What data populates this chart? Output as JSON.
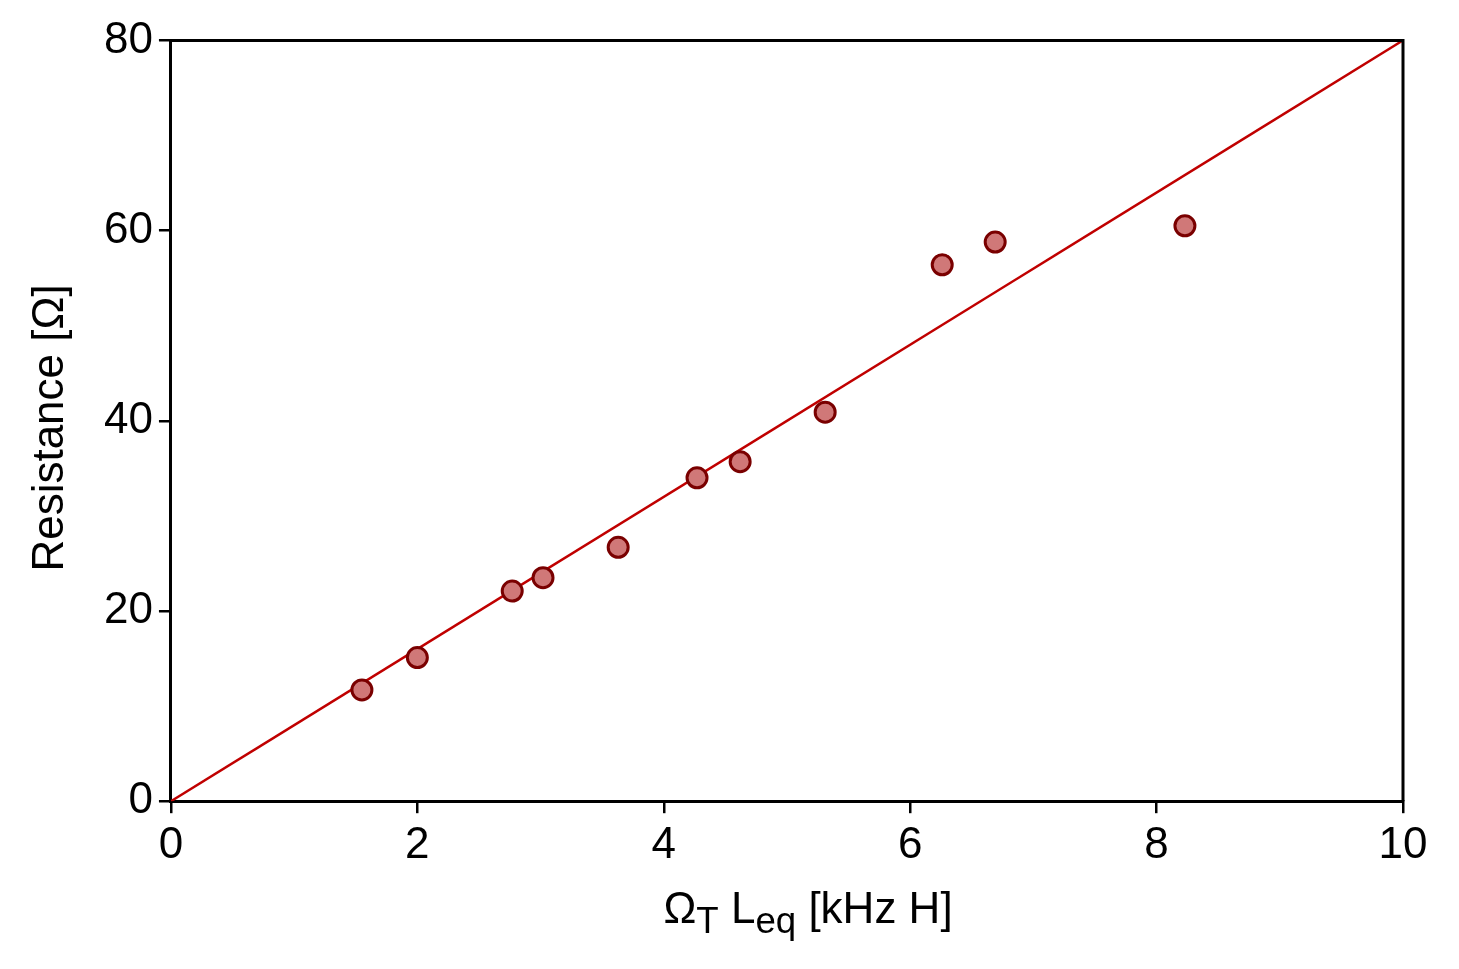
{
  "chart_data": {
    "type": "scatter",
    "xlabel": "Ω$_{T}$ L$_{eq}$ [kHz H]",
    "ylabel": "Resistance [Ω]",
    "series": [
      {
        "color": "#d07878",
        "x": [
          1.55,
          2.0,
          2.77,
          3.02,
          3.63,
          4.27,
          4.62,
          5.31,
          6.26,
          6.69,
          8.23
        ],
        "values": [
          11.7,
          15.1,
          22.1,
          23.5,
          26.7,
          34.0,
          35.7,
          40.9,
          56.4,
          58.8,
          60.5
        ]
      },
      {
        "type": "line",
        "marker": "none",
        "color": "#c00000",
        "x": [
          0,
          10
        ],
        "values": [
          0,
          80
        ]
      }
    ],
    "xlim": [
      0,
      10
    ],
    "xticks": [
      0,
      2,
      4,
      6,
      8,
      10
    ],
    "ylim": [
      0,
      80
    ],
    "yticks": [
      0,
      20,
      40,
      60,
      80
    ],
    "grid": false,
    "legend": false,
    "marker": "circle"
  }
}
